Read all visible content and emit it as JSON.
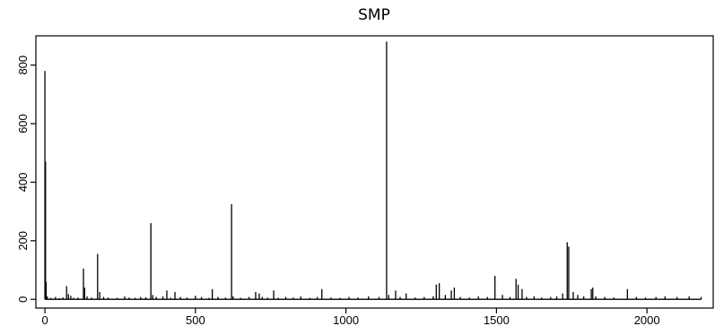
{
  "chart_data": {
    "type": "line",
    "plot_style": "vertical spikes (type h)",
    "title": "SMP",
    "xlabel": "",
    "ylabel": "",
    "xlim": [
      -30,
      2220
    ],
    "ylim": [
      -30,
      900
    ],
    "x_ticks": [
      0,
      500,
      1000,
      1500,
      2000
    ],
    "y_ticks": [
      0,
      200,
      400,
      600,
      800
    ],
    "x_tick_labels": [
      "0",
      "500",
      "1000",
      "1500",
      "2000"
    ],
    "y_tick_labels": [
      "0",
      "200",
      "400",
      "600",
      "800"
    ],
    "grid": false,
    "line_color": "#000000",
    "series": [
      {
        "x": [
          0,
          2,
          4,
          8,
          20,
          35,
          48,
          60,
          72,
          78,
          86,
          95,
          110,
          128,
          132,
          140,
          155,
          175,
          182,
          195,
          210,
          240,
          265,
          280,
          300,
          318,
          335,
          352,
          358,
          370,
          392,
          405,
          418,
          432,
          450,
          472,
          500,
          520,
          545,
          556,
          575,
          600,
          620,
          625,
          650,
          678,
          700,
          712,
          722,
          740,
          760,
          775,
          800,
          825,
          850,
          880,
          905,
          920,
          950,
          980,
          1010,
          1040,
          1075,
          1110,
          1135,
          1142,
          1165,
          1180,
          1200,
          1230,
          1260,
          1290,
          1300,
          1310,
          1330,
          1350,
          1360,
          1380,
          1410,
          1440,
          1470,
          1495,
          1520,
          1545,
          1565,
          1572,
          1585,
          1600,
          1625,
          1650,
          1680,
          1700,
          1720,
          1735,
          1740,
          1755,
          1770,
          1790,
          1815,
          1820,
          1830,
          1860,
          1890,
          1935,
          1965,
          1995,
          2030,
          2060,
          2100,
          2140,
          2180
        ],
        "y": [
          780,
          470,
          60,
          10,
          5,
          8,
          4,
          6,
          45,
          18,
          12,
          5,
          6,
          105,
          40,
          10,
          6,
          155,
          25,
          8,
          6,
          5,
          10,
          6,
          5,
          8,
          7,
          260,
          15,
          8,
          10,
          30,
          5,
          25,
          8,
          6,
          12,
          8,
          5,
          35,
          8,
          6,
          325,
          10,
          5,
          8,
          25,
          20,
          8,
          6,
          30,
          5,
          8,
          6,
          10,
          5,
          8,
          35,
          6,
          5,
          8,
          6,
          10,
          8,
          880,
          15,
          30,
          8,
          20,
          6,
          8,
          10,
          50,
          55,
          15,
          30,
          40,
          8,
          6,
          10,
          8,
          80,
          15,
          8,
          70,
          50,
          35,
          8,
          10,
          6,
          8,
          10,
          20,
          195,
          180,
          25,
          15,
          10,
          35,
          40,
          10,
          8,
          6,
          35,
          8,
          6,
          8,
          10,
          8,
          10,
          8
        ]
      }
    ]
  }
}
